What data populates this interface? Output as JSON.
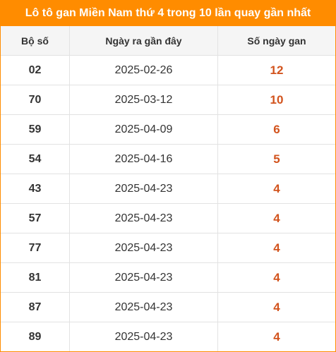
{
  "title": "Lô tô gan Miền Nam thứ 4 trong 10 lần quay gần nhất",
  "headers": {
    "number": "Bộ số",
    "last_date": "Ngày ra gần đây",
    "days_gap": "Số ngày gan"
  },
  "colors": {
    "accent": "#ff8c00",
    "days_text": "#d2531d"
  },
  "rows": [
    {
      "number": "02",
      "date": "2025-02-26",
      "days": "12"
    },
    {
      "number": "70",
      "date": "2025-03-12",
      "days": "10"
    },
    {
      "number": "59",
      "date": "2025-04-09",
      "days": "6"
    },
    {
      "number": "54",
      "date": "2025-04-16",
      "days": "5"
    },
    {
      "number": "43",
      "date": "2025-04-23",
      "days": "4"
    },
    {
      "number": "57",
      "date": "2025-04-23",
      "days": "4"
    },
    {
      "number": "77",
      "date": "2025-04-23",
      "days": "4"
    },
    {
      "number": "81",
      "date": "2025-04-23",
      "days": "4"
    },
    {
      "number": "87",
      "date": "2025-04-23",
      "days": "4"
    },
    {
      "number": "89",
      "date": "2025-04-23",
      "days": "4"
    }
  ]
}
